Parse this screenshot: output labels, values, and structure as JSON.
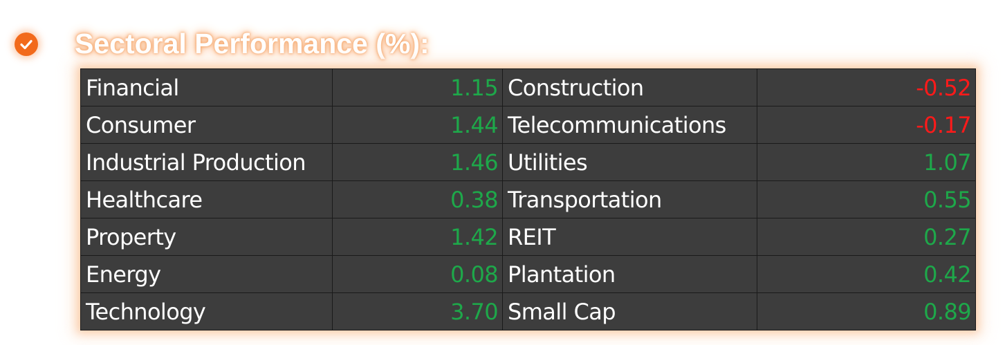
{
  "header": {
    "title": "Sectoral Performance (%):",
    "icon": "check-circle-icon",
    "accent_color": "#f26a1b"
  },
  "colors": {
    "table_background": "#3d3d3d",
    "positive": "#1ea84a",
    "negative": "#ff1a1a",
    "text": "#ffffff"
  },
  "table": {
    "rows": [
      {
        "left_sector": "Financial",
        "left_value": "1.15",
        "right_sector": "Construction",
        "right_value": "-0.52"
      },
      {
        "left_sector": "Consumer",
        "left_value": "1.44",
        "right_sector": "Telecommunications",
        "right_value": "-0.17"
      },
      {
        "left_sector": "Industrial Production",
        "left_value": "1.46",
        "right_sector": "Utilities",
        "right_value": "1.07"
      },
      {
        "left_sector": "Healthcare",
        "left_value": "0.38",
        "right_sector": "Transportation",
        "right_value": "0.55"
      },
      {
        "left_sector": "Property",
        "left_value": "1.42",
        "right_sector": "REIT",
        "right_value": "0.27"
      },
      {
        "left_sector": "Energy",
        "left_value": "0.08",
        "right_sector": "Plantation",
        "right_value": "0.42"
      },
      {
        "left_sector": "Technology",
        "left_value": "3.70",
        "right_sector": "Small Cap",
        "right_value": "0.89"
      }
    ]
  }
}
